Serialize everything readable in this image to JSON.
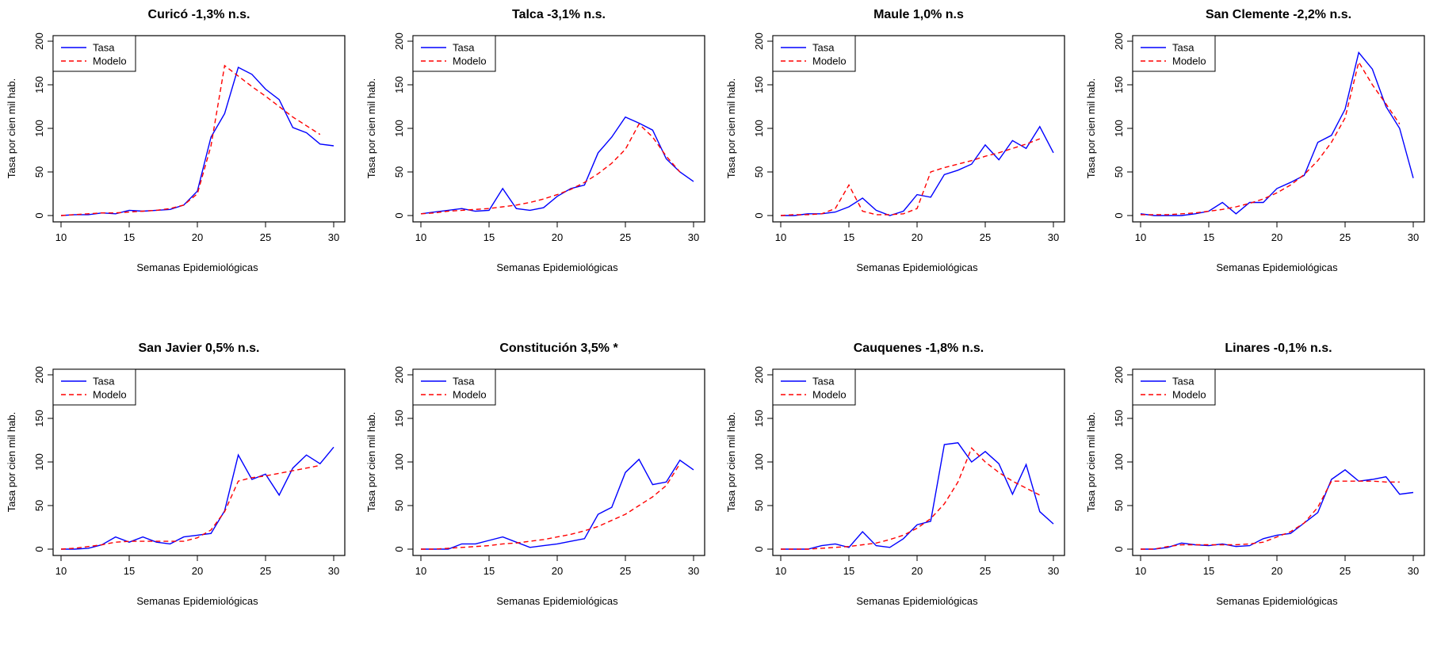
{
  "chart_data": [
    {
      "type": "line",
      "title": "Curicó -1,3% n.s.",
      "xlabel": "Semanas Epidemiológicas",
      "ylabel": "Tasa por cien mil hab.",
      "xlim": [
        10,
        30
      ],
      "ylim": [
        0,
        200
      ],
      "xticks": [
        10,
        15,
        20,
        25,
        30
      ],
      "yticks": [
        0,
        50,
        100,
        150,
        200
      ],
      "legend": "top-left",
      "series": [
        {
          "name": "Tasa",
          "color": "#0000ff",
          "dash": "solid",
          "x": [
            10,
            11,
            12,
            13,
            14,
            15,
            16,
            17,
            18,
            19,
            20,
            21,
            22,
            23,
            24,
            25,
            26,
            27,
            28,
            29,
            30
          ],
          "y": [
            0,
            1,
            1,
            3,
            2,
            6,
            5,
            6,
            7,
            12,
            28,
            90,
            117,
            170,
            162,
            145,
            133,
            101,
            95,
            82,
            80
          ]
        },
        {
          "name": "Modelo",
          "color": "#ff0000",
          "dash": "dashed",
          "x": [
            10,
            11,
            12,
            13,
            14,
            15,
            16,
            17,
            18,
            19,
            20,
            21,
            22,
            23,
            24,
            25,
            26,
            27,
            28,
            29
          ],
          "y": [
            0,
            1,
            2,
            3,
            3,
            4,
            5,
            6,
            8,
            12,
            25,
            80,
            172,
            160,
            148,
            137,
            125,
            113,
            103,
            93
          ]
        }
      ]
    },
    {
      "type": "line",
      "title": "Talca -3,1% n.s.",
      "xlabel": "Semanas Epidemiológicas",
      "ylabel": "Tasa por cien mil hab.",
      "xlim": [
        10,
        30
      ],
      "ylim": [
        0,
        200
      ],
      "xticks": [
        10,
        15,
        20,
        25,
        30
      ],
      "yticks": [
        0,
        50,
        100,
        150,
        200
      ],
      "legend": "top-left",
      "series": [
        {
          "name": "Tasa",
          "color": "#0000ff",
          "dash": "solid",
          "x": [
            10,
            11,
            12,
            13,
            14,
            15,
            16,
            17,
            18,
            19,
            20,
            21,
            22,
            23,
            24,
            25,
            26,
            27,
            28,
            29,
            30
          ],
          "y": [
            2,
            4,
            6,
            8,
            5,
            6,
            31,
            8,
            6,
            9,
            22,
            31,
            35,
            72,
            90,
            113,
            106,
            98,
            65,
            50,
            39
          ]
        },
        {
          "name": "Modelo",
          "color": "#ff0000",
          "dash": "dashed",
          "x": [
            10,
            11,
            12,
            13,
            14,
            15,
            16,
            17,
            18,
            19,
            20,
            21,
            22,
            23,
            24,
            25,
            26,
            27,
            28,
            29
          ],
          "y": [
            2,
            3,
            5,
            6,
            7,
            8,
            10,
            12,
            15,
            19,
            24,
            30,
            38,
            48,
            60,
            76,
            105,
            90,
            68,
            50
          ]
        }
      ]
    },
    {
      "type": "line",
      "title": "Maule 1,0% n.s",
      "xlabel": "Semanas Epidemiológicas",
      "ylabel": "Tasa por cien mil hab.",
      "xlim": [
        10,
        30
      ],
      "ylim": [
        0,
        200
      ],
      "xticks": [
        10,
        15,
        20,
        25,
        30
      ],
      "yticks": [
        0,
        50,
        100,
        150,
        200
      ],
      "legend": "top-left",
      "series": [
        {
          "name": "Tasa",
          "color": "#0000ff",
          "dash": "solid",
          "x": [
            10,
            11,
            12,
            13,
            14,
            15,
            16,
            17,
            18,
            19,
            20,
            21,
            22,
            23,
            24,
            25,
            26,
            27,
            28,
            29,
            30
          ],
          "y": [
            0,
            0,
            2,
            2,
            4,
            10,
            20,
            6,
            0,
            5,
            24,
            21,
            47,
            52,
            59,
            81,
            64,
            86,
            77,
            102,
            72
          ]
        },
        {
          "name": "Modelo",
          "color": "#ff0000",
          "dash": "dashed",
          "x": [
            10,
            11,
            12,
            13,
            14,
            15,
            16,
            17,
            18,
            19,
            20,
            21,
            22,
            23,
            24,
            25,
            26,
            27,
            28,
            29
          ],
          "y": [
            0,
            1,
            1,
            2,
            8,
            35,
            5,
            1,
            1,
            2,
            8,
            50,
            55,
            59,
            63,
            68,
            72,
            77,
            82,
            88
          ]
        }
      ]
    },
    {
      "type": "line",
      "title": "San Clemente -2,2% n.s.",
      "xlabel": "Semanas Epidemiológicas",
      "ylabel": "Tasa por cien mil hab.",
      "xlim": [
        10,
        30
      ],
      "ylim": [
        0,
        200
      ],
      "xticks": [
        10,
        15,
        20,
        25,
        30
      ],
      "yticks": [
        0,
        50,
        100,
        150,
        200
      ],
      "legend": "top-left",
      "series": [
        {
          "name": "Tasa",
          "color": "#0000ff",
          "dash": "solid",
          "x": [
            10,
            11,
            12,
            13,
            14,
            15,
            16,
            17,
            18,
            19,
            20,
            21,
            22,
            23,
            24,
            25,
            26,
            27,
            28,
            29,
            30
          ],
          "y": [
            2,
            0,
            0,
            0,
            2,
            5,
            15,
            2,
            15,
            15,
            31,
            38,
            46,
            84,
            92,
            122,
            187,
            168,
            125,
            100,
            43
          ]
        },
        {
          "name": "Modelo",
          "color": "#ff0000",
          "dash": "dashed",
          "x": [
            10,
            11,
            12,
            13,
            14,
            15,
            16,
            17,
            18,
            19,
            20,
            21,
            22,
            23,
            24,
            25,
            26,
            27,
            28,
            29
          ],
          "y": [
            1,
            1,
            1,
            2,
            3,
            5,
            7,
            10,
            14,
            19,
            26,
            35,
            47,
            63,
            84,
            112,
            176,
            150,
            128,
            105
          ]
        }
      ]
    },
    {
      "type": "line",
      "title": "San Javier 0,5% n.s.",
      "xlabel": "Semanas Epidemiológicas",
      "ylabel": "Tasa por cien mil hab.",
      "xlim": [
        10,
        30
      ],
      "ylim": [
        0,
        200
      ],
      "xticks": [
        10,
        15,
        20,
        25,
        30
      ],
      "yticks": [
        0,
        50,
        100,
        150,
        200
      ],
      "legend": "top-left",
      "series": [
        {
          "name": "Tasa",
          "color": "#0000ff",
          "dash": "solid",
          "x": [
            10,
            11,
            12,
            13,
            14,
            15,
            16,
            17,
            18,
            19,
            20,
            21,
            22,
            23,
            24,
            25,
            26,
            27,
            28,
            29,
            30
          ],
          "y": [
            0,
            0,
            1,
            5,
            14,
            8,
            14,
            8,
            6,
            14,
            16,
            18,
            44,
            108,
            80,
            86,
            62,
            93,
            108,
            98,
            117
          ]
        },
        {
          "name": "Modelo",
          "color": "#ff0000",
          "dash": "dashed",
          "x": [
            10,
            11,
            12,
            13,
            14,
            15,
            16,
            17,
            18,
            19,
            20,
            21,
            22,
            23,
            24,
            25,
            26,
            27,
            28,
            29
          ],
          "y": [
            0,
            1,
            3,
            5,
            8,
            9,
            9,
            9,
            9,
            9,
            13,
            22,
            43,
            78,
            82,
            84,
            87,
            90,
            93,
            96
          ]
        }
      ]
    },
    {
      "type": "line",
      "title": "Constitución 3,5% *",
      "xlabel": "Semanas Epidemiológicas",
      "ylabel": "Tasa por cien mil hab.",
      "xlim": [
        10,
        30
      ],
      "ylim": [
        0,
        200
      ],
      "xticks": [
        10,
        15,
        20,
        25,
        30
      ],
      "yticks": [
        0,
        50,
        100,
        150,
        200
      ],
      "legend": "top-left",
      "series": [
        {
          "name": "Tasa",
          "color": "#0000ff",
          "dash": "solid",
          "x": [
            10,
            11,
            12,
            13,
            14,
            15,
            16,
            17,
            18,
            19,
            20,
            21,
            22,
            23,
            24,
            25,
            26,
            27,
            28,
            29,
            30
          ],
          "y": [
            0,
            0,
            0,
            6,
            6,
            10,
            14,
            8,
            2,
            4,
            6,
            9,
            12,
            40,
            48,
            88,
            103,
            74,
            77,
            102,
            91
          ]
        },
        {
          "name": "Modelo",
          "color": "#ff0000",
          "dash": "dashed",
          "x": [
            10,
            11,
            12,
            13,
            14,
            15,
            16,
            17,
            18,
            19,
            20,
            21,
            22,
            23,
            24,
            25,
            26,
            27,
            28,
            29
          ],
          "y": [
            0,
            0,
            1,
            2,
            3,
            4,
            6,
            7,
            9,
            11,
            14,
            17,
            21,
            26,
            33,
            40,
            50,
            60,
            73,
            98
          ]
        }
      ]
    },
    {
      "type": "line",
      "title": "Cauquenes -1,8% n.s.",
      "xlabel": "Semanas Epidemiológicas",
      "ylabel": "Tasa por cien mil hab.",
      "xlim": [
        10,
        30
      ],
      "ylim": [
        0,
        200
      ],
      "xticks": [
        10,
        15,
        20,
        25,
        30
      ],
      "yticks": [
        0,
        50,
        100,
        150,
        200
      ],
      "legend": "top-left",
      "series": [
        {
          "name": "Tasa",
          "color": "#0000ff",
          "dash": "solid",
          "x": [
            10,
            11,
            12,
            13,
            14,
            15,
            16,
            17,
            18,
            19,
            20,
            21,
            22,
            23,
            24,
            25,
            26,
            27,
            28,
            29,
            30
          ],
          "y": [
            0,
            0,
            0,
            4,
            6,
            2,
            20,
            4,
            2,
            12,
            28,
            32,
            120,
            122,
            100,
            112,
            98,
            63,
            97,
            43,
            29
          ]
        },
        {
          "name": "Modelo",
          "color": "#ff0000",
          "dash": "dashed",
          "x": [
            10,
            11,
            12,
            13,
            14,
            15,
            16,
            17,
            18,
            19,
            20,
            21,
            22,
            23,
            24,
            25,
            26,
            27,
            28,
            29
          ],
          "y": [
            0,
            0,
            0,
            1,
            2,
            3,
            5,
            7,
            11,
            16,
            24,
            35,
            52,
            77,
            116,
            100,
            88,
            78,
            70,
            62
          ]
        }
      ]
    },
    {
      "type": "line",
      "title": "Linares -0,1% n.s.",
      "xlabel": "Semanas Epidemiológicas",
      "ylabel": "Tasa por cien mil hab.",
      "xlim": [
        10,
        30
      ],
      "ylim": [
        0,
        200
      ],
      "xticks": [
        10,
        15,
        20,
        25,
        30
      ],
      "yticks": [
        0,
        50,
        100,
        150,
        200
      ],
      "legend": "top-left",
      "series": [
        {
          "name": "Tasa",
          "color": "#0000ff",
          "dash": "solid",
          "x": [
            10,
            11,
            12,
            13,
            14,
            15,
            16,
            17,
            18,
            19,
            20,
            21,
            22,
            23,
            24,
            25,
            26,
            27,
            28,
            29,
            30
          ],
          "y": [
            0,
            0,
            2,
            7,
            5,
            4,
            6,
            3,
            4,
            12,
            16,
            18,
            30,
            42,
            80,
            91,
            78,
            80,
            83,
            63,
            65
          ]
        },
        {
          "name": "Modelo",
          "color": "#ff0000",
          "dash": "dashed",
          "x": [
            10,
            11,
            12,
            13,
            14,
            15,
            16,
            17,
            18,
            19,
            20,
            21,
            22,
            23,
            24,
            25,
            26,
            27,
            28,
            29
          ],
          "y": [
            0,
            0,
            3,
            5,
            5,
            5,
            5,
            5,
            6,
            8,
            14,
            20,
            30,
            48,
            78,
            78,
            78,
            78,
            77,
            77
          ]
        }
      ]
    }
  ]
}
